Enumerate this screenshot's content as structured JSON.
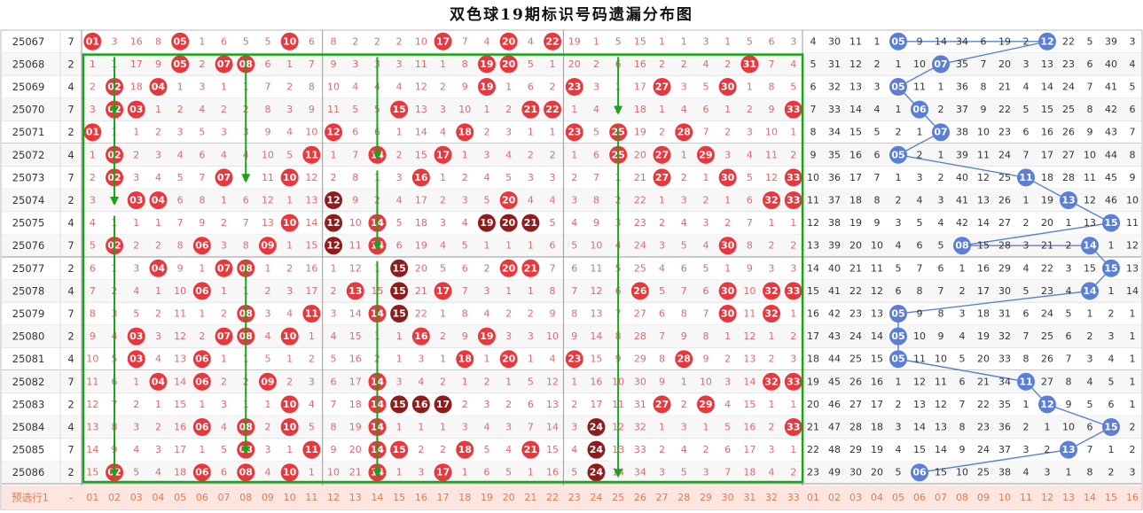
{
  "title": "双色球19期标识号码遗漏分布图",
  "footer_label": "预选行1",
  "footer_dash": "-",
  "colors": {
    "red_ball": "#e8383d",
    "dark_ball": "#8f1c1c",
    "blue_ball": "#5b7fd6",
    "green_box": "#1aa21a",
    "arrow": "#1aa21a",
    "miss_red": "#e06a6a",
    "miss_blue": "#333333",
    "row_alt": "#f7f7f7",
    "footer_bg": "#fde6e0",
    "footer_text": "#e07a50"
  },
  "red_numbers": [
    "01",
    "02",
    "03",
    "04",
    "05",
    "06",
    "07",
    "08",
    "09",
    "10",
    "11",
    "12",
    "13",
    "14",
    "15",
    "16",
    "17",
    "18",
    "19",
    "20",
    "21",
    "22",
    "23",
    "24",
    "25",
    "26",
    "27",
    "28",
    "29",
    "30",
    "31",
    "32",
    "33"
  ],
  "blue_numbers": [
    "01",
    "02",
    "03",
    "04",
    "05",
    "06",
    "07",
    "08",
    "09",
    "10",
    "11",
    "12",
    "13",
    "14",
    "15",
    "16"
  ],
  "chart_data": {
    "type": "table",
    "title": "双色球19期标识号码遗漏分布图",
    "rows": [
      {
        "issue": "25067",
        "k": "7",
        "red": [
          "01",
          "3",
          "16",
          "8",
          "05",
          "1",
          "6",
          "5",
          "5",
          "10",
          "6",
          "8",
          "2",
          "2",
          "2",
          "10",
          "17",
          "7",
          "4",
          "20",
          "4",
          "22",
          "19",
          "1",
          "5",
          "15",
          "1",
          "1",
          "3",
          "1",
          "5",
          "6",
          "3"
        ],
        "blue": [
          "4",
          "30",
          "11",
          "1",
          "05",
          "9",
          "14",
          "34",
          "6",
          "19",
          "2",
          "12",
          "22",
          "5",
          "39",
          "3"
        ]
      },
      {
        "issue": "25068",
        "k": "2",
        "red": [
          "1",
          "1",
          "17",
          "9",
          "05",
          "2",
          "07",
          "08",
          "6",
          "1",
          "7",
          "9",
          "3",
          "3",
          "3",
          "11",
          "1",
          "8",
          "19",
          "20",
          "5",
          "1",
          "20",
          "2",
          "6",
          "16",
          "2",
          "2",
          "4",
          "2",
          "31",
          "7",
          "4"
        ],
        "blue": [
          "5",
          "31",
          "12",
          "2",
          "1",
          "10",
          "07",
          "35",
          "7",
          "20",
          "3",
          "13",
          "23",
          "6",
          "40",
          "4"
        ]
      },
      {
        "issue": "25069",
        "k": "4",
        "red": [
          "2",
          "02",
          "18",
          "04",
          "1",
          "3",
          "1",
          "1",
          "7",
          "2",
          "8",
          "10",
          "4",
          "4",
          "4",
          "12",
          "2",
          "9",
          "19",
          "1",
          "6",
          "2",
          "23",
          "3",
          "1",
          "17",
          "27",
          "3",
          "5",
          "30",
          "1",
          "8",
          "5"
        ],
        "blue": [
          "6",
          "32",
          "13",
          "3",
          "05",
          "11",
          "1",
          "36",
          "8",
          "21",
          "4",
          "14",
          "24",
          "7",
          "41",
          "5"
        ]
      },
      {
        "issue": "25070",
        "k": "7",
        "red": [
          "3",
          "02",
          "03",
          "1",
          "2",
          "4",
          "2",
          "2",
          "8",
          "3",
          "9",
          "11",
          "5",
          "5",
          "15",
          "13",
          "3",
          "10",
          "1",
          "2",
          "21",
          "22",
          "1",
          "4",
          "2",
          "18",
          "1",
          "4",
          "6",
          "1",
          "2",
          "9",
          "33"
        ],
        "blue": [
          "7",
          "33",
          "14",
          "4",
          "1",
          "06",
          "2",
          "37",
          "9",
          "22",
          "5",
          "15",
          "25",
          "8",
          "42",
          "6"
        ]
      },
      {
        "issue": "25071",
        "k": "2",
        "red": [
          "01",
          "1",
          "1",
          "2",
          "3",
          "5",
          "3",
          "3",
          "9",
          "4",
          "10",
          "12",
          "6",
          "6",
          "1",
          "14",
          "4",
          "18",
          "2",
          "3",
          "1",
          "1",
          "23",
          "5",
          "25",
          "19",
          "2",
          "28",
          "7",
          "2",
          "3",
          "10",
          "1"
        ],
        "blue": [
          "8",
          "34",
          "15",
          "5",
          "2",
          "1",
          "07",
          "38",
          "10",
          "23",
          "6",
          "16",
          "26",
          "9",
          "43",
          "7"
        ]
      },
      {
        "issue": "25072",
        "k": "4",
        "red": [
          "1",
          "02",
          "2",
          "3",
          "4",
          "6",
          "4",
          "4",
          "10",
          "5",
          "11",
          "1",
          "7",
          "14",
          "2",
          "15",
          "17",
          "1",
          "3",
          "4",
          "2",
          "2",
          "1",
          "6",
          "25",
          "20",
          "27",
          "1",
          "29",
          "3",
          "4",
          "11",
          "2"
        ],
        "blue": [
          "9",
          "35",
          "16",
          "6",
          "05",
          "2",
          "1",
          "39",
          "11",
          "24",
          "7",
          "17",
          "27",
          "10",
          "44",
          "8"
        ]
      },
      {
        "issue": "25073",
        "k": "7",
        "red": [
          "2",
          "02",
          "3",
          "4",
          "5",
          "7",
          "07",
          "5",
          "11",
          "10",
          "12",
          "2",
          "8",
          "1",
          "3",
          "16",
          "1",
          "2",
          "4",
          "5",
          "3",
          "3",
          "2",
          "7",
          "1",
          "21",
          "27",
          "2",
          "1",
          "30",
          "5",
          "12",
          "33"
        ],
        "blue": [
          "10",
          "36",
          "17",
          "7",
          "1",
          "3",
          "2",
          "40",
          "12",
          "25",
          "11",
          "18",
          "28",
          "11",
          "45",
          "9"
        ]
      },
      {
        "issue": "25074",
        "k": "2",
        "red": [
          "3",
          "1",
          "03",
          "04",
          "6",
          "8",
          "1",
          "6",
          "12",
          "1",
          "13",
          "12",
          "9",
          "2",
          "4",
          "17",
          "2",
          "3",
          "5",
          "20",
          "4",
          "4",
          "3",
          "8",
          "2",
          "22",
          "1",
          "3",
          "2",
          "1",
          "6",
          "32",
          "33"
        ],
        "blue": [
          "11",
          "37",
          "18",
          "8",
          "2",
          "4",
          "3",
          "41",
          "13",
          "26",
          "1",
          "19",
          "13",
          "12",
          "46",
          "10"
        ]
      },
      {
        "issue": "25075",
        "k": "4",
        "red": [
          "4",
          "1",
          "1",
          "1",
          "7",
          "9",
          "2",
          "7",
          "13",
          "10",
          "14",
          "12",
          "10",
          "14",
          "5",
          "18",
          "3",
          "4",
          "19",
          "20",
          "21",
          "5",
          "4",
          "9",
          "3",
          "23",
          "2",
          "4",
          "3",
          "2",
          "7",
          "1",
          "1"
        ],
        "blue": [
          "12",
          "38",
          "19",
          "9",
          "3",
          "5",
          "4",
          "42",
          "14",
          "27",
          "2",
          "20",
          "1",
          "13",
          "15",
          "11"
        ]
      },
      {
        "issue": "25076",
        "k": "7",
        "red": [
          "5",
          "02",
          "2",
          "2",
          "8",
          "06",
          "3",
          "8",
          "09",
          "1",
          "15",
          "12",
          "11",
          "14",
          "6",
          "19",
          "4",
          "5",
          "1",
          "1",
          "1",
          "6",
          "5",
          "10",
          "4",
          "24",
          "3",
          "5",
          "4",
          "30",
          "8",
          "2",
          "2"
        ],
        "blue": [
          "13",
          "39",
          "20",
          "10",
          "4",
          "6",
          "5",
          "08",
          "15",
          "28",
          "3",
          "21",
          "2",
          "14",
          "1",
          "12"
        ]
      },
      {
        "issue": "25077",
        "k": "2",
        "red": [
          "6",
          "1",
          "3",
          "04",
          "9",
          "1",
          "07",
          "08",
          "1",
          "2",
          "16",
          "1",
          "12",
          "1",
          "15",
          "20",
          "5",
          "6",
          "2",
          "20",
          "21",
          "7",
          "6",
          "11",
          "5",
          "25",
          "4",
          "6",
          "5",
          "1",
          "9",
          "3",
          "3"
        ],
        "blue": [
          "14",
          "40",
          "21",
          "11",
          "5",
          "7",
          "6",
          "1",
          "16",
          "29",
          "4",
          "22",
          "3",
          "15",
          "15",
          "13"
        ]
      },
      {
        "issue": "25078",
        "k": "4",
        "red": [
          "7",
          "2",
          "4",
          "1",
          "10",
          "06",
          "1",
          "1",
          "2",
          "3",
          "17",
          "2",
          "13",
          "15",
          "15",
          "21",
          "17",
          "7",
          "3",
          "1",
          "1",
          "8",
          "7",
          "12",
          "6",
          "26",
          "5",
          "7",
          "6",
          "30",
          "10",
          "32",
          "33"
        ],
        "blue": [
          "15",
          "41",
          "22",
          "12",
          "6",
          "8",
          "7",
          "2",
          "17",
          "30",
          "5",
          "23",
          "4",
          "14",
          "1",
          "14"
        ]
      },
      {
        "issue": "25079",
        "k": "7",
        "red": [
          "8",
          "3",
          "5",
          "2",
          "11",
          "1",
          "2",
          "08",
          "3",
          "4",
          "11",
          "3",
          "14",
          "14",
          "15",
          "22",
          "1",
          "8",
          "4",
          "2",
          "2",
          "9",
          "8",
          "13",
          "7",
          "27",
          "6",
          "8",
          "7",
          "30",
          "11",
          "32",
          "1"
        ],
        "blue": [
          "16",
          "42",
          "23",
          "13",
          "05",
          "9",
          "8",
          "3",
          "18",
          "31",
          "6",
          "24",
          "5",
          "1",
          "2",
          "1"
        ]
      },
      {
        "issue": "25080",
        "k": "2",
        "red": [
          "9",
          "4",
          "03",
          "3",
          "12",
          "2",
          "07",
          "08",
          "4",
          "10",
          "1",
          "4",
          "15",
          "1",
          "1",
          "16",
          "2",
          "9",
          "19",
          "3",
          "3",
          "10",
          "9",
          "14",
          "8",
          "28",
          "7",
          "9",
          "8",
          "1",
          "12",
          "1",
          "2"
        ],
        "blue": [
          "17",
          "43",
          "24",
          "14",
          "05",
          "10",
          "9",
          "4",
          "19",
          "32",
          "7",
          "25",
          "6",
          "2",
          "3",
          "1"
        ]
      },
      {
        "issue": "25081",
        "k": "4",
        "red": [
          "10",
          "5",
          "03",
          "4",
          "13",
          "06",
          "1",
          "1",
          "5",
          "1",
          "2",
          "5",
          "16",
          "2",
          "1",
          "3",
          "1",
          "18",
          "1",
          "20",
          "1",
          "4",
          "23",
          "15",
          "9",
          "29",
          "8",
          "28",
          "9",
          "2",
          "13",
          "2",
          "3"
        ],
        "blue": [
          "18",
          "44",
          "25",
          "15",
          "05",
          "11",
          "10",
          "5",
          "20",
          "33",
          "8",
          "26",
          "7",
          "3",
          "4",
          "1"
        ]
      },
      {
        "issue": "25082",
        "k": "7",
        "red": [
          "11",
          "6",
          "1",
          "04",
          "14",
          "06",
          "2",
          "2",
          "09",
          "2",
          "3",
          "6",
          "17",
          "14",
          "3",
          "4",
          "2",
          "1",
          "2",
          "1",
          "5",
          "12",
          "1",
          "16",
          "10",
          "30",
          "9",
          "1",
          "10",
          "3",
          "14",
          "32",
          "33"
        ],
        "blue": [
          "19",
          "45",
          "26",
          "16",
          "1",
          "12",
          "11",
          "6",
          "21",
          "34",
          "11",
          "27",
          "8",
          "4",
          "5",
          "1"
        ]
      },
      {
        "issue": "25083",
        "k": "2",
        "red": [
          "12",
          "7",
          "2",
          "1",
          "15",
          "1",
          "3",
          "1",
          "1",
          "10",
          "4",
          "7",
          "18",
          "14",
          "15",
          "16",
          "17",
          "2",
          "3",
          "2",
          "6",
          "13",
          "2",
          "17",
          "11",
          "31",
          "27",
          "2",
          "29",
          "4",
          "15",
          "1",
          "1"
        ],
        "blue": [
          "20",
          "46",
          "27",
          "17",
          "2",
          "13",
          "12",
          "7",
          "22",
          "35",
          "1",
          "12",
          "9",
          "5",
          "6",
          "1"
        ]
      },
      {
        "issue": "25084",
        "k": "4",
        "red": [
          "13",
          "8",
          "3",
          "2",
          "16",
          "06",
          "4",
          "08",
          "2",
          "10",
          "5",
          "8",
          "19",
          "14",
          "1",
          "1",
          "1",
          "3",
          "4",
          "3",
          "7",
          "14",
          "3",
          "24",
          "12",
          "32",
          "1",
          "3",
          "1",
          "5",
          "16",
          "2",
          "33"
        ],
        "blue": [
          "21",
          "47",
          "28",
          "18",
          "3",
          "14",
          "13",
          "8",
          "23",
          "36",
          "2",
          "1",
          "10",
          "6",
          "15",
          "2"
        ]
      },
      {
        "issue": "25085",
        "k": "7",
        "red": [
          "14",
          "9",
          "4",
          "3",
          "17",
          "1",
          "5",
          "08",
          "3",
          "1",
          "11",
          "9",
          "20",
          "14",
          "15",
          "2",
          "2",
          "18",
          "5",
          "4",
          "21",
          "15",
          "4",
          "24",
          "13",
          "33",
          "2",
          "4",
          "2",
          "6",
          "17",
          "3",
          "1"
        ],
        "blue": [
          "22",
          "48",
          "29",
          "19",
          "4",
          "15",
          "14",
          "9",
          "24",
          "37",
          "3",
          "2",
          "13",
          "7",
          "1",
          "2"
        ]
      },
      {
        "issue": "25086",
        "k": "2",
        "red": [
          "15",
          "02",
          "5",
          "4",
          "18",
          "06",
          "6",
          "08",
          "4",
          "10",
          "1",
          "10",
          "21",
          "14",
          "1",
          "3",
          "17",
          "1",
          "6",
          "5",
          "1",
          "16",
          "5",
          "24",
          "14",
          "34",
          "3",
          "5",
          "3",
          "7",
          "18",
          "4",
          "2"
        ],
        "blue": [
          "23",
          "49",
          "30",
          "20",
          "5",
          "06",
          "15",
          "10",
          "25",
          "38",
          "4",
          "3",
          "1",
          "8",
          "2",
          "3"
        ]
      }
    ],
    "ball_colors": {
      "dark": [
        "25074:12",
        "25075:12",
        "25076:12",
        "25077:15",
        "25078:15",
        "25079:15",
        "25083:15",
        "25083:16",
        "25083:17",
        "25075:19",
        "25075:20",
        "25075:21",
        "25084:24",
        "25085:24",
        "25086:24"
      ]
    },
    "blue_trend_note": "",
    "green_box": {
      "from_issue": "25068",
      "to_issue": "25086",
      "from_col": "01",
      "to_col": "33"
    }
  }
}
